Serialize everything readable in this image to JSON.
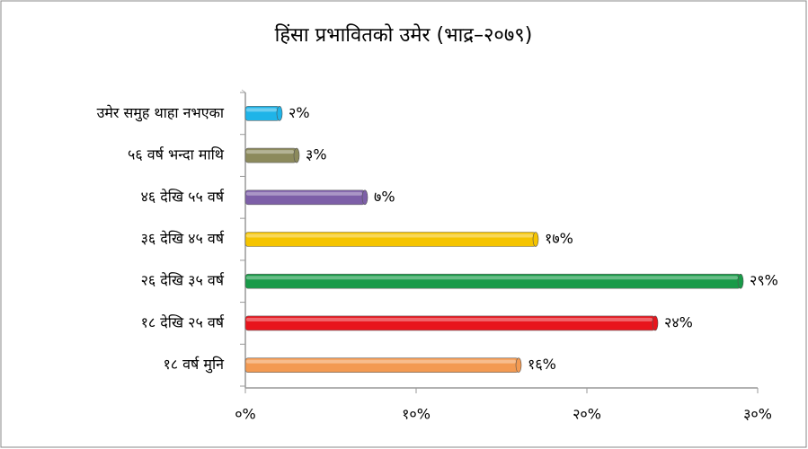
{
  "chart_data": {
    "type": "hbar",
    "title": "हिंसा प्रभावितको उमेर (भाद्र–२०७९)",
    "categories": [
      "उमेर समुह थाहा नभएका",
      "५६ वर्ष भन्दा माथि",
      "४६ देखि ५५ वर्ष",
      "३६ देखि ४५ वर्ष",
      "२६ देखि ३५ वर्ष",
      "१८ देखि २५ वर्ष",
      "१८ वर्ष मुनि"
    ],
    "values": [
      2,
      3,
      7,
      17,
      29,
      24,
      16
    ],
    "value_labels": [
      "२%",
      "३%",
      "७%",
      "१७%",
      "२९%",
      "२४%",
      "१६%"
    ],
    "colors": [
      "#1fb4e8",
      "#8c8a5c",
      "#7d5fa8",
      "#f5c400",
      "#189a48",
      "#e8141c",
      "#f39a52"
    ],
    "xlim": [
      0,
      30
    ],
    "xticks": [
      {
        "value": 0,
        "label": "०%"
      },
      {
        "value": 10,
        "label": "१०%"
      },
      {
        "value": 20,
        "label": "२०%"
      },
      {
        "value": 30,
        "label": "३०%"
      }
    ],
    "grid": false
  }
}
